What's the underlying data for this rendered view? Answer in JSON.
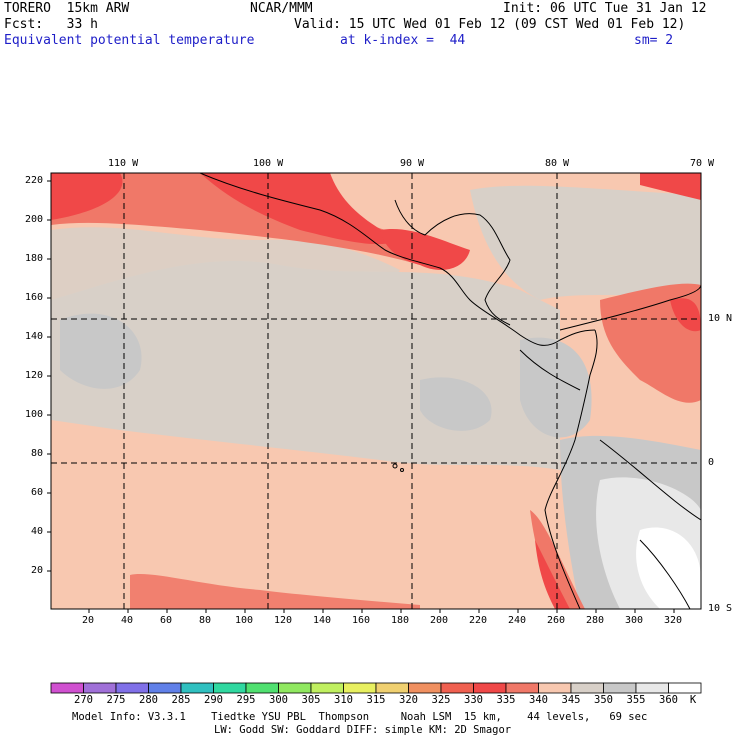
{
  "header": {
    "model": "TORERO  15km ARW",
    "center": "NCAR/MMM",
    "init": "Init: 06 UTC Tue 31 Jan 12",
    "fcst": "Fcst:   33 h",
    "valid": "Valid: 15 UTC Wed 01 Feb 12 (09 CST Wed 01 Feb 12)",
    "field": "Equivalent potential temperature",
    "level": "at k-index =  44",
    "smooth": "sm= 2"
  },
  "top_ticks": [
    "110 W",
    "100 W",
    "90 W",
    "80 W",
    "70 W"
  ],
  "right_ticks": [
    "10 N",
    "0",
    "10 S"
  ],
  "y_ticks": [
    "220",
    "200",
    "180",
    "160",
    "140",
    "120",
    "100",
    "80",
    "60",
    "40",
    "20"
  ],
  "x_ticks": [
    "20",
    "40",
    "60",
    "80",
    "100",
    "120",
    "140",
    "160",
    "180",
    "200",
    "220",
    "240",
    "260",
    "280",
    "300",
    "320"
  ],
  "legend": {
    "labels": [
      "270",
      "275",
      "280",
      "285",
      "290",
      "295",
      "300",
      "305",
      "310",
      "315",
      "320",
      "325",
      "330",
      "335",
      "340",
      "345",
      "350",
      "355",
      "360"
    ],
    "unit": "K",
    "colors": [
      "#d050d0",
      "#a070d8",
      "#8070e8",
      "#6080e8",
      "#30c0c0",
      "#30d8a0",
      "#50e070",
      "#90e860",
      "#c0f060",
      "#e8f060",
      "#f0d070",
      "#f09060",
      "#f06050",
      "#f04848",
      "#f07868",
      "#f8c8b0",
      "#d8d0c8",
      "#c8c8c8",
      "#e8e8e8",
      "#ffffff"
    ]
  },
  "footer": {
    "line1": "Model Info: V3.3.1    Tiedtke YSU PBL  Thompson     Noah LSM  15 km,    44 levels,   69 sec",
    "line2": "LW: Godd SW: Goddard DIFF: simple KM: 2D Smagor"
  }
}
